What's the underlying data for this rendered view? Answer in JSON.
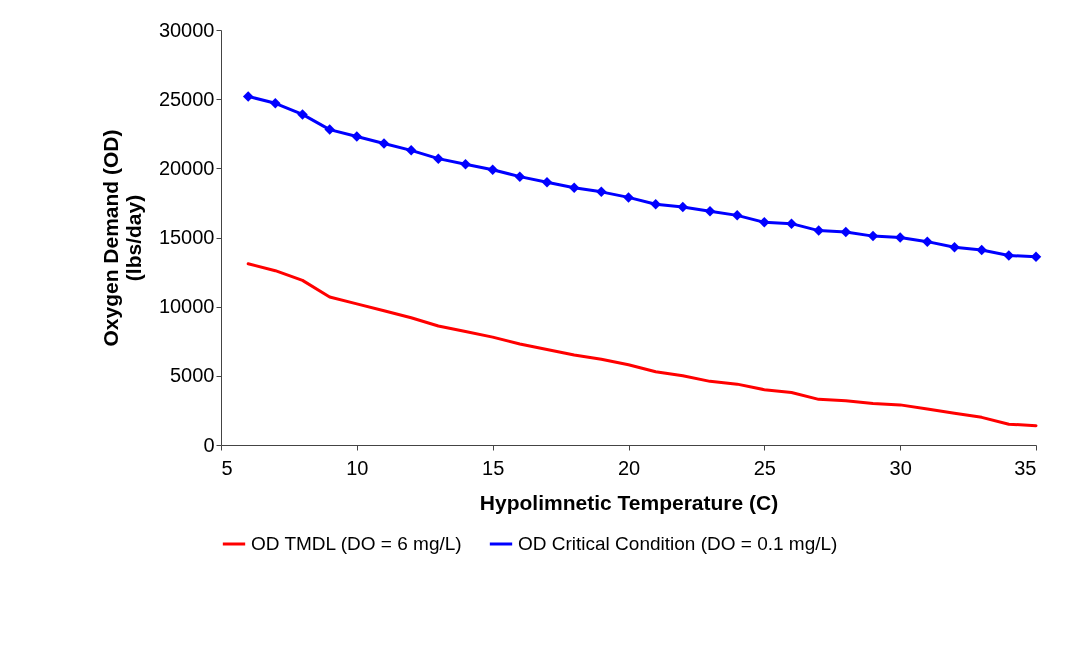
{
  "chart_data": {
    "type": "line",
    "xlabel": "Hypolimnetic Temperature (C)",
    "ylabel": "Oxygen Demand (OD)\n(lbs/day)",
    "x": [
      6,
      7,
      8,
      9,
      10,
      11,
      12,
      13,
      14,
      15,
      16,
      17,
      18,
      19,
      20,
      21,
      22,
      23,
      24,
      25,
      26,
      27,
      28,
      29,
      30,
      31,
      32,
      33,
      34,
      35
    ],
    "series": [
      {
        "name": "OD TMDL (DO = 6 mg/L)",
        "color": "#ff0000",
        "marker": "none",
        "values": [
          13100,
          12600,
          11900,
          10700,
          10200,
          9700,
          9200,
          8600,
          8200,
          7800,
          7300,
          6900,
          6500,
          6200,
          5800,
          5300,
          5000,
          4600,
          4400,
          4000,
          3800,
          3300,
          3200,
          3000,
          2900,
          2600,
          2300,
          2000,
          1500,
          1400
        ]
      },
      {
        "name": "OD Critical Condition (DO = 0.1 mg/L)",
        "color": "#0000ff",
        "marker": "diamond",
        "values": [
          25200,
          24700,
          23900,
          22800,
          22300,
          21800,
          21300,
          20700,
          20300,
          19900,
          19400,
          19000,
          18600,
          18300,
          17900,
          17400,
          17200,
          16900,
          16600,
          16100,
          16000,
          15500,
          15400,
          15100,
          15000,
          14700,
          14300,
          14100,
          13700,
          13600
        ]
      }
    ],
    "xlim": [
      5,
      35
    ],
    "xticks": [
      5,
      10,
      15,
      20,
      25,
      30,
      35
    ],
    "ylim": [
      0,
      30000
    ],
    "yticks": [
      0,
      5000,
      10000,
      15000,
      20000,
      25000,
      30000
    ],
    "grid": false,
    "legend": "bottom"
  }
}
